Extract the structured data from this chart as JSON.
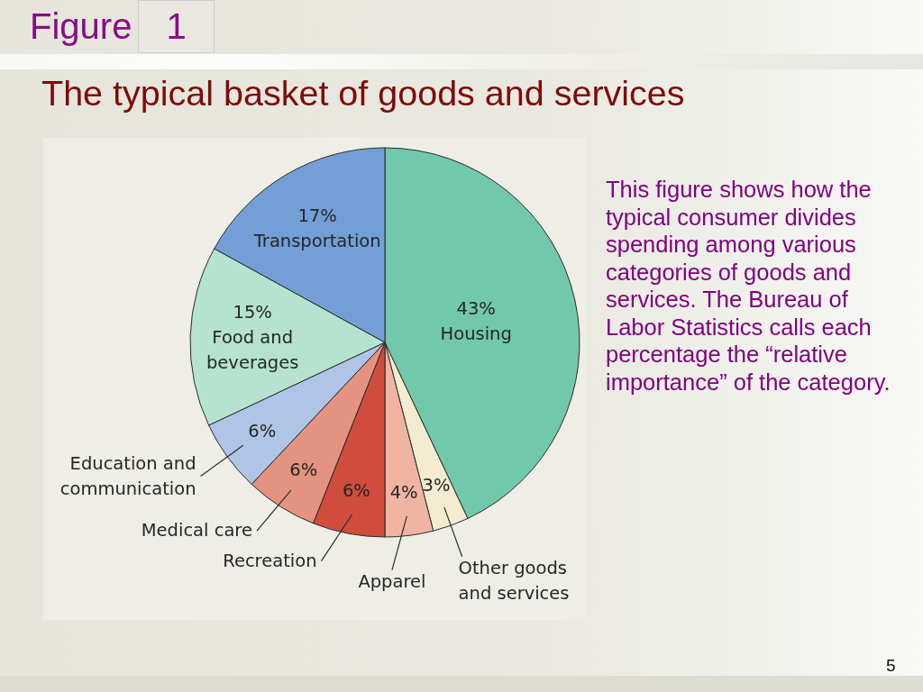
{
  "chart_data": {
    "type": "pie",
    "title": "The typical basket of goods and services",
    "categories": [
      "Housing",
      "Other goods and services",
      "Apparel",
      "Recreation",
      "Medical care",
      "Education and communication",
      "Food and beverages",
      "Transportation"
    ],
    "values": [
      43,
      3,
      4,
      6,
      6,
      6,
      15,
      17
    ],
    "value_labels": [
      "43%",
      "3%",
      "4%",
      "6%",
      "6%",
      "6%",
      "15%",
      "17%"
    ],
    "colors": [
      "#72c8ab",
      "#f3ecd0",
      "#efb4a2",
      "#d04c3d",
      "#e3937f",
      "#b0c4e6",
      "#b5e3d0",
      "#739fd6"
    ],
    "annotations": [
      "Figure 1",
      "This figure shows how the typical consumer divides spending among various categories of goods and services. The Bureau of Labor Statistics calls each percentage the “relative importance” of the category.",
      "5"
    ]
  }
}
